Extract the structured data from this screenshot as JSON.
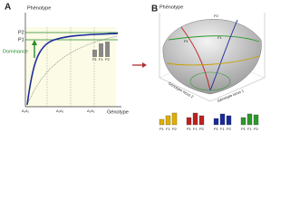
{
  "panel_a": {
    "letter": "A",
    "y_label": "Phénotype",
    "levels": [
      "P2",
      "P1"
    ],
    "annotation": "Dominance",
    "x_ticks": [
      "A₁A₁",
      "A₁A₂",
      "A₂A₂"
    ],
    "x_label": "Génotype",
    "bar_labels": [
      "P1",
      "F1",
      "P2"
    ]
  },
  "panel_b": {
    "letter": "B",
    "z_label": "Phénotype",
    "surface_labels": [
      "P2",
      "F1",
      "P1"
    ],
    "x_label": "Génotype locus 1",
    "y_label": "Génotype locus 2",
    "bar_groups": [
      [
        "P1",
        "F1",
        "P2"
      ],
      [
        "P1",
        "F1",
        "P2"
      ],
      [
        "P1",
        "F1",
        "P2"
      ],
      [
        "P1",
        "F1",
        "P2"
      ]
    ]
  }
}
